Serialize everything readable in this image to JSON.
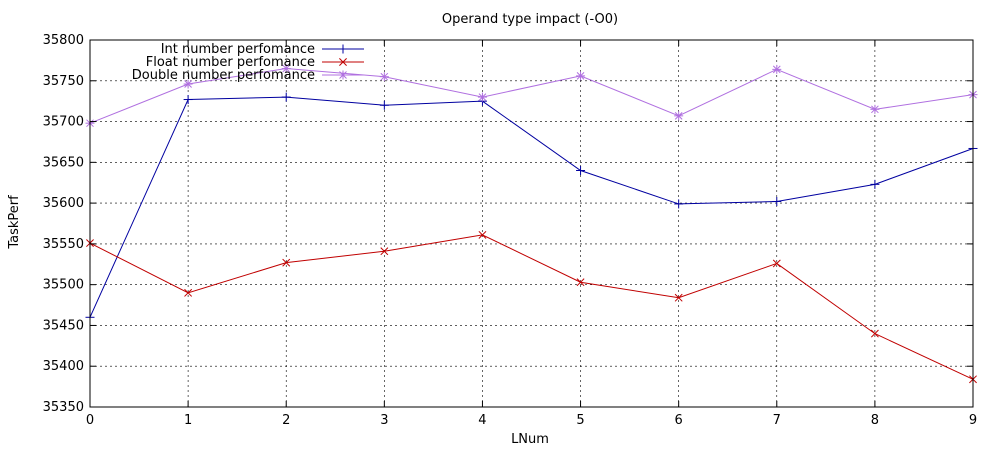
{
  "chart_data": {
    "type": "line",
    "title": "Operand type impact (-O0)",
    "xlabel": "LNum",
    "ylabel": "TaskPerf",
    "x": [
      0,
      1,
      2,
      3,
      4,
      5,
      6,
      7,
      8,
      9
    ],
    "xlim": [
      0,
      9
    ],
    "ylim": [
      35350,
      35800
    ],
    "x_ticks": [
      0,
      1,
      2,
      3,
      4,
      5,
      6,
      7,
      8,
      9
    ],
    "y_ticks": [
      35350,
      35400,
      35450,
      35500,
      35550,
      35600,
      35650,
      35700,
      35750,
      35800
    ],
    "grid": true,
    "legend_position": "top-left",
    "series": [
      {
        "name": "Int number perfomance",
        "color": "#0000a0",
        "marker": "plus",
        "values": [
          35460,
          35727,
          35730,
          35720,
          35725,
          35640,
          35599,
          35602,
          35623,
          35667
        ]
      },
      {
        "name": "Float number perfomance",
        "color": "#c00000",
        "marker": "cross",
        "values": [
          35551,
          35490,
          35527,
          35541,
          35561,
          35503,
          35484,
          35526,
          35440,
          35384
        ]
      },
      {
        "name": "Double number perfomance",
        "color": "#b070e0",
        "marker": "star",
        "values": [
          35698,
          35746,
          35765,
          35755,
          35730,
          35756,
          35707,
          35764,
          35715,
          35733
        ]
      }
    ]
  }
}
